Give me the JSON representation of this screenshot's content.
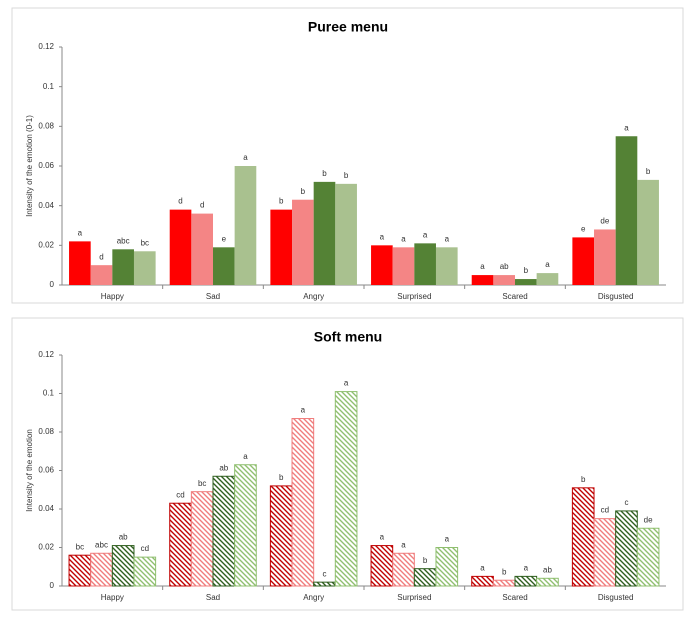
{
  "chart_data": [
    {
      "type": "bar",
      "title": "Puree menu",
      "y_label": "Intensity of the emotion (0-1)",
      "hatch": false,
      "categories": [
        "Happy",
        "Sad",
        "Angry",
        "Surprised",
        "Scared",
        "Disgusted"
      ],
      "ylim": [
        0,
        0.12
      ],
      "yticks": [
        0,
        0.02,
        0.04,
        0.06,
        0.08,
        0.1,
        0.12
      ],
      "series": [
        {
          "color": "#ff0000",
          "values": [
            0.022,
            0.038,
            0.038,
            0.02,
            0.005,
            0.024
          ],
          "letters": [
            "a",
            "d",
            "b",
            "a",
            "a",
            "e"
          ]
        },
        {
          "color": "#f48585",
          "values": [
            0.01,
            0.036,
            0.043,
            0.019,
            0.005,
            0.028
          ],
          "letters": [
            "d",
            "d",
            "b",
            "a",
            "ab",
            "de"
          ]
        },
        {
          "color": "#548235",
          "values": [
            0.018,
            0.019,
            0.052,
            0.021,
            0.003,
            0.075
          ],
          "letters": [
            "abc",
            "e",
            "b",
            "a",
            "b",
            "a"
          ]
        },
        {
          "color": "#a9c18f",
          "values": [
            0.017,
            0.06,
            0.051,
            0.019,
            0.006,
            0.053
          ],
          "letters": [
            "bc",
            "a",
            "b",
            "a",
            "a",
            "b"
          ]
        }
      ]
    },
    {
      "type": "bar",
      "title": "Soft menu",
      "y_label": "Intensity of the emotion",
      "hatch": true,
      "categories": [
        "Happy",
        "Sad",
        "Angry",
        "Surprised",
        "Scared",
        "Disgusted"
      ],
      "ylim": [
        0,
        0.12
      ],
      "yticks": [
        0,
        0.02,
        0.04,
        0.06,
        0.08,
        0.1,
        0.12
      ],
      "series": [
        {
          "color": "#c00000",
          "values": [
            0.016,
            0.043,
            0.052,
            0.021,
            0.005,
            0.051
          ],
          "letters": [
            "bc",
            "cd",
            "b",
            "a",
            "a",
            "b"
          ]
        },
        {
          "color": "#f07c7c",
          "values": [
            0.017,
            0.049,
            0.087,
            0.017,
            0.003,
            0.035
          ],
          "letters": [
            "abc",
            "bc",
            "a",
            "a",
            "b",
            "cd"
          ]
        },
        {
          "color": "#2f5f1f",
          "values": [
            0.021,
            0.057,
            0.002,
            0.009,
            0.005,
            0.039
          ],
          "letters": [
            "ab",
            "ab",
            "c",
            "b",
            "a",
            "c"
          ]
        },
        {
          "color": "#8fbf6f",
          "values": [
            0.015,
            0.063,
            0.101,
            0.02,
            0.004,
            0.03
          ],
          "letters": [
            "cd",
            "a",
            "a",
            "a",
            "ab",
            "de"
          ]
        }
      ]
    }
  ]
}
